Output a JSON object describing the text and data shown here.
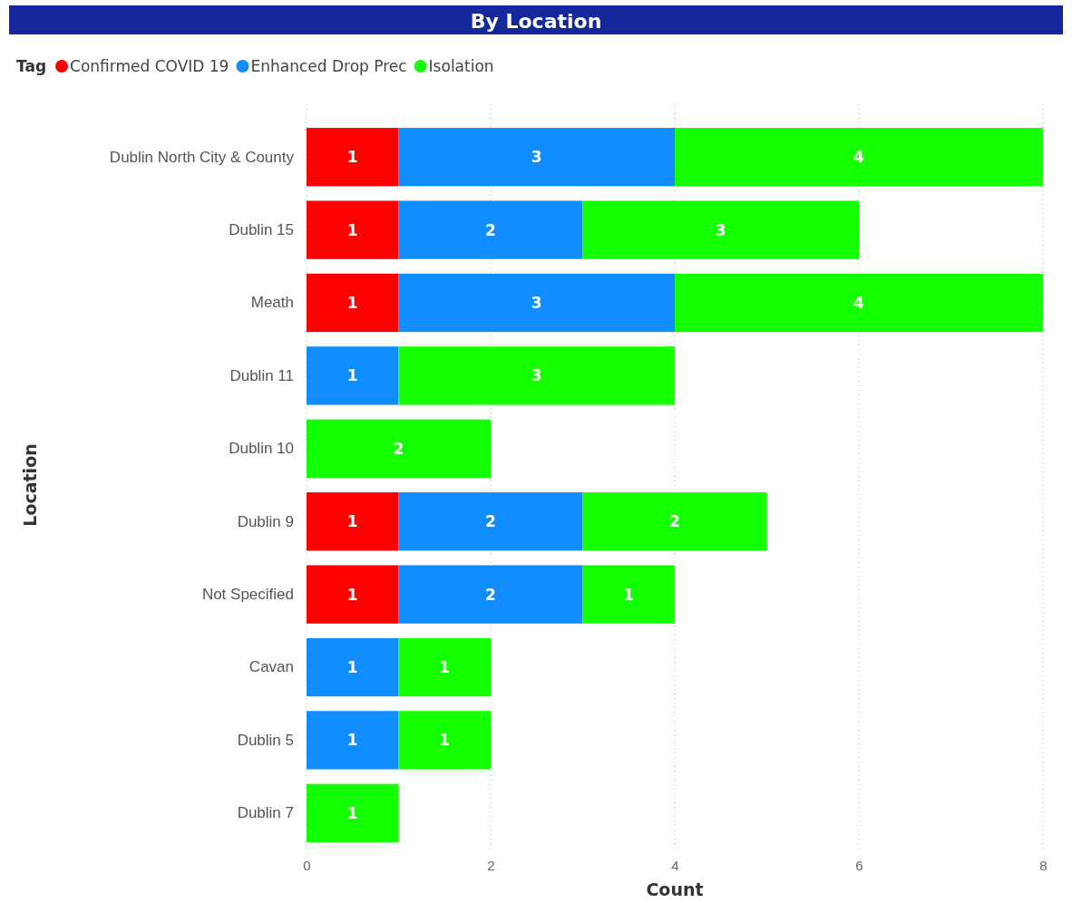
{
  "chart_data": {
    "type": "bar",
    "title": "By Location",
    "xlabel": "Count",
    "ylabel": "Location",
    "legend_title": "Tag",
    "legend": "top left",
    "orientation": "horizontal",
    "stacked": true,
    "data_labels": true,
    "grid": "x",
    "categories": [
      "Dublin North City & County",
      "Dublin 15",
      "Meath",
      "Dublin 11",
      "Dublin 10",
      "Dublin 9",
      "Not Specified",
      "Cavan",
      "Dublin 5",
      "Dublin 7"
    ],
    "series": [
      {
        "name": "Confirmed COVID 19",
        "color": "#ff0000",
        "values": [
          1,
          1,
          1,
          null,
          null,
          1,
          1,
          null,
          null,
          null
        ]
      },
      {
        "name": "Enhanced Drop Prec",
        "color": "#118dff",
        "values": [
          3,
          2,
          3,
          1,
          null,
          2,
          2,
          1,
          1,
          null
        ]
      },
      {
        "name": "Isolation",
        "color": "#14ff00",
        "values": [
          4,
          3,
          4,
          3,
          2,
          2,
          1,
          1,
          1,
          1
        ]
      }
    ],
    "xlim": [
      0,
      8
    ],
    "xticks": [
      0,
      2,
      4,
      6,
      8
    ]
  }
}
